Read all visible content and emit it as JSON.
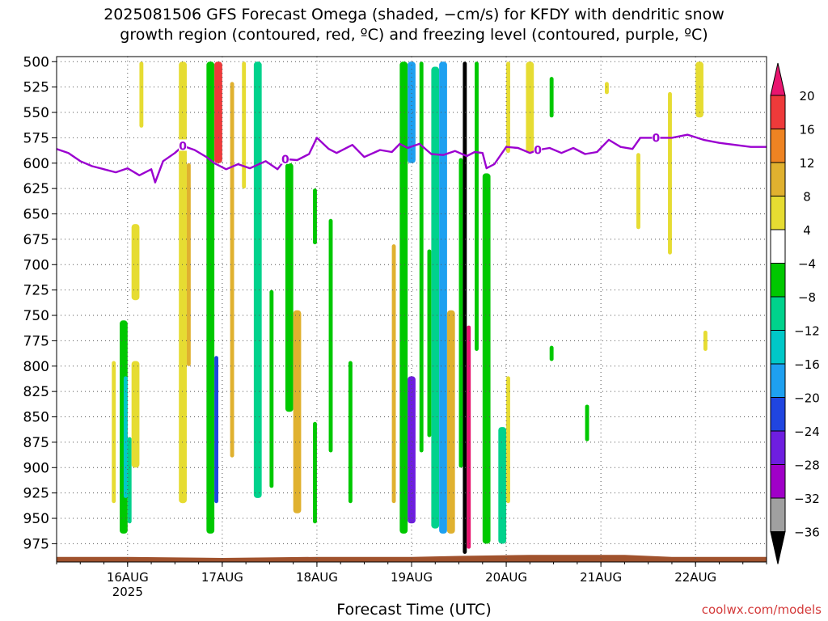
{
  "title_lines": [
    "2025081506 GFS Forecast Omega (shaded, −cm/s) for KFDY with dendritic snow",
    "growth region (contoured, red, ºC) and freezing level (contoured, purple, ºC)"
  ],
  "xlabel": "Forecast Time (UTC)",
  "credit": "coolwx.com/models",
  "chart_data": {
    "type": "heatmap",
    "x_time_range": [
      "2025-08-15T06",
      "2025-08-22T18"
    ],
    "x_ticks": [
      {
        "t": "2025-08-16T00",
        "label": "16AUG",
        "sublabel": "2025"
      },
      {
        "t": "2025-08-17T00",
        "label": "17AUG"
      },
      {
        "t": "2025-08-18T00",
        "label": "18AUG"
      },
      {
        "t": "2025-08-19T00",
        "label": "19AUG"
      },
      {
        "t": "2025-08-20T00",
        "label": "20AUG"
      },
      {
        "t": "2025-08-21T00",
        "label": "21AUG"
      },
      {
        "t": "2025-08-22T00",
        "label": "22AUG"
      }
    ],
    "y_pressure_range": [
      495,
      993
    ],
    "y_ticks": [
      500,
      525,
      550,
      575,
      600,
      625,
      650,
      675,
      700,
      725,
      750,
      775,
      800,
      825,
      850,
      875,
      900,
      925,
      950,
      975
    ],
    "grid": true,
    "colorbar": {
      "ticks": [
        20,
        16,
        12,
        8,
        4,
        -4,
        -8,
        -12,
        -16,
        -20,
        -24,
        -28,
        -32,
        -36
      ],
      "bins": [
        {
          "lo": 20,
          "hi": 24,
          "color": "#e8156f"
        },
        {
          "lo": 16,
          "hi": 20,
          "color": "#ee3a3a"
        },
        {
          "lo": 12,
          "hi": 16,
          "color": "#ee8322"
        },
        {
          "lo": 8,
          "hi": 12,
          "color": "#e0b12f"
        },
        {
          "lo": 4,
          "hi": 8,
          "color": "#e6dc32"
        },
        {
          "lo": -4,
          "hi": 4,
          "color": "#ffffff"
        },
        {
          "lo": -8,
          "hi": -4,
          "color": "#00c800"
        },
        {
          "lo": -12,
          "hi": -8,
          "color": "#00d28c"
        },
        {
          "lo": -16,
          "hi": -12,
          "color": "#00c8c8"
        },
        {
          "lo": -20,
          "hi": -16,
          "color": "#1ea0f0"
        },
        {
          "lo": -24,
          "hi": -20,
          "color": "#2045e0"
        },
        {
          "lo": -28,
          "hi": -24,
          "color": "#6e1ee0"
        },
        {
          "lo": -32,
          "hi": -28,
          "color": "#a000c8"
        },
        {
          "lo": -36,
          "hi": -32,
          "color": "#a0a0a0"
        },
        {
          "lo": -40,
          "hi": -36,
          "color": "#000000"
        }
      ]
    },
    "freezing_level": {
      "color": "#9b00d0",
      "label": "0",
      "label_times": [
        "2025-08-16T14",
        "2025-08-17T16",
        "2025-08-20T08",
        "2025-08-21T14"
      ],
      "points": [
        [
          "2025-08-15T06",
          586
        ],
        [
          "2025-08-15T09",
          590
        ],
        [
          "2025-08-15T12",
          598
        ],
        [
          "2025-08-15T15",
          603
        ],
        [
          "2025-08-15T18",
          606
        ],
        [
          "2025-08-15T21",
          609
        ],
        [
          "2025-08-16T00",
          605
        ],
        [
          "2025-08-16T03",
          612
        ],
        [
          "2025-08-16T06",
          606
        ],
        [
          "2025-08-16T07",
          619
        ],
        [
          "2025-08-16T09",
          598
        ],
        [
          "2025-08-16T12",
          590
        ],
        [
          "2025-08-16T14",
          583
        ],
        [
          "2025-08-16T17",
          587
        ],
        [
          "2025-08-16T20",
          594
        ],
        [
          "2025-08-16T22",
          600
        ],
        [
          "2025-08-17T01",
          606
        ],
        [
          "2025-08-17T04",
          601
        ],
        [
          "2025-08-17T07",
          605
        ],
        [
          "2025-08-17T11",
          598
        ],
        [
          "2025-08-17T14",
          606
        ],
        [
          "2025-08-17T16",
          596
        ],
        [
          "2025-08-17T19",
          597
        ],
        [
          "2025-08-17T22",
          591
        ],
        [
          "2025-08-18T00",
          575
        ],
        [
          "2025-08-18T03",
          586
        ],
        [
          "2025-08-18T05",
          590
        ],
        [
          "2025-08-18T09",
          582
        ],
        [
          "2025-08-18T12",
          594
        ],
        [
          "2025-08-18T16",
          587
        ],
        [
          "2025-08-18T19",
          589
        ],
        [
          "2025-08-18T21",
          581
        ],
        [
          "2025-08-18T23",
          585
        ],
        [
          "2025-08-19T02",
          581
        ],
        [
          "2025-08-19T05",
          591
        ],
        [
          "2025-08-19T08",
          592
        ],
        [
          "2025-08-19T11",
          588
        ],
        [
          "2025-08-19T14",
          593
        ],
        [
          "2025-08-19T16",
          589
        ],
        [
          "2025-08-19T18",
          590
        ],
        [
          "2025-08-19T19",
          605
        ],
        [
          "2025-08-19T21",
          601
        ],
        [
          "2025-08-20T00",
          584
        ],
        [
          "2025-08-20T03",
          585
        ],
        [
          "2025-08-20T06",
          590
        ],
        [
          "2025-08-20T08",
          587
        ],
        [
          "2025-08-20T11",
          585
        ],
        [
          "2025-08-20T14",
          590
        ],
        [
          "2025-08-20T17",
          585
        ],
        [
          "2025-08-20T20",
          591
        ],
        [
          "2025-08-20T23",
          589
        ],
        [
          "2025-08-21T02",
          577
        ],
        [
          "2025-08-21T05",
          584
        ],
        [
          "2025-08-21T08",
          586
        ],
        [
          "2025-08-21T10",
          575
        ],
        [
          "2025-08-21T14",
          575
        ],
        [
          "2025-08-21T18",
          575
        ],
        [
          "2025-08-21T22",
          572
        ],
        [
          "2025-08-22T02",
          577
        ],
        [
          "2025-08-22T06",
          580
        ],
        [
          "2025-08-22T10",
          582
        ],
        [
          "2025-08-22T14",
          584
        ],
        [
          "2025-08-22T18",
          584
        ]
      ]
    },
    "surface": {
      "color": "#a0522d",
      "points": [
        [
          "2025-08-15T06",
          988
        ],
        [
          "2025-08-16T00",
          988
        ],
        [
          "2025-08-17T00",
          989
        ],
        [
          "2025-08-18T00",
          988
        ],
        [
          "2025-08-19T00",
          988
        ],
        [
          "2025-08-19T12",
          987
        ],
        [
          "2025-08-20T06",
          986
        ],
        [
          "2025-08-21T06",
          986
        ],
        [
          "2025-08-21T18",
          988
        ],
        [
          "2025-08-22T18",
          988
        ]
      ]
    },
    "omega_bands": [
      {
        "t0": "2025-08-15T20",
        "t1": "2025-08-15T21",
        "p0": 795,
        "p1": 935,
        "value": 5
      },
      {
        "t0": "2025-08-15T22",
        "t1": "2025-08-16T00",
        "p0": 755,
        "p1": 965,
        "value": -6
      },
      {
        "t0": "2025-08-15T23",
        "t1": "2025-08-16T00",
        "p0": 810,
        "p1": 930,
        "value": -14
      },
      {
        "t0": "2025-08-16T00",
        "t1": "2025-08-16T01",
        "p0": 870,
        "p1": 955,
        "value": -9
      },
      {
        "t0": "2025-08-16T01",
        "t1": "2025-08-16T03",
        "p0": 660,
        "p1": 735,
        "value": 5
      },
      {
        "t0": "2025-08-16T01",
        "t1": "2025-08-16T03",
        "p0": 795,
        "p1": 900,
        "value": 5
      },
      {
        "t0": "2025-08-16T03",
        "t1": "2025-08-16T04",
        "p0": 500,
        "p1": 565,
        "value": 5
      },
      {
        "t0": "2025-08-16T13",
        "t1": "2025-08-16T15",
        "p0": 500,
        "p1": 935,
        "value": 6
      },
      {
        "t0": "2025-08-16T15",
        "t1": "2025-08-16T16",
        "p0": 600,
        "p1": 800,
        "value": 10
      },
      {
        "t0": "2025-08-16T20",
        "t1": "2025-08-16T22",
        "p0": 500,
        "p1": 965,
        "value": -6
      },
      {
        "t0": "2025-08-16T22",
        "t1": "2025-08-17T00",
        "p0": 500,
        "p1": 600,
        "value": 17
      },
      {
        "t0": "2025-08-16T22",
        "t1": "2025-08-16T23",
        "p0": 790,
        "p1": 935,
        "value": -22
      },
      {
        "t0": "2025-08-17T02",
        "t1": "2025-08-17T03",
        "p0": 520,
        "p1": 890,
        "value": 10
      },
      {
        "t0": "2025-08-17T05",
        "t1": "2025-08-17T06",
        "p0": 500,
        "p1": 625,
        "value": 5
      },
      {
        "t0": "2025-08-17T08",
        "t1": "2025-08-17T10",
        "p0": 500,
        "p1": 930,
        "value": -10
      },
      {
        "t0": "2025-08-17T12",
        "t1": "2025-08-17T13",
        "p0": 725,
        "p1": 920,
        "value": -6
      },
      {
        "t0": "2025-08-17T16",
        "t1": "2025-08-17T18",
        "p0": 600,
        "p1": 845,
        "value": -8
      },
      {
        "t0": "2025-08-17T18",
        "t1": "2025-08-17T20",
        "p0": 745,
        "p1": 945,
        "value": 10
      },
      {
        "t0": "2025-08-17T23",
        "t1": "2025-08-18T00",
        "p0": 625,
        "p1": 680,
        "value": -6
      },
      {
        "t0": "2025-08-17T23",
        "t1": "2025-08-18T00",
        "p0": 855,
        "p1": 955,
        "value": -6
      },
      {
        "t0": "2025-08-18T03",
        "t1": "2025-08-18T04",
        "p0": 655,
        "p1": 885,
        "value": -6
      },
      {
        "t0": "2025-08-18T08",
        "t1": "2025-08-18T09",
        "p0": 795,
        "p1": 935,
        "value": -6
      },
      {
        "t0": "2025-08-18T19",
        "t1": "2025-08-18T20",
        "p0": 680,
        "p1": 935,
        "value": 10
      },
      {
        "t0": "2025-08-18T21",
        "t1": "2025-08-18T23",
        "p0": 500,
        "p1": 965,
        "value": -6
      },
      {
        "t0": "2025-08-18T23",
        "t1": "2025-08-19T01",
        "p0": 500,
        "p1": 600,
        "value": -18
      },
      {
        "t0": "2025-08-18T23",
        "t1": "2025-08-19T01",
        "p0": 810,
        "p1": 955,
        "value": -26
      },
      {
        "t0": "2025-08-19T02",
        "t1": "2025-08-19T03",
        "p0": 500,
        "p1": 885,
        "value": -6
      },
      {
        "t0": "2025-08-19T04",
        "t1": "2025-08-19T05",
        "p0": 685,
        "p1": 870,
        "value": -6
      },
      {
        "t0": "2025-08-19T05",
        "t1": "2025-08-19T07",
        "p0": 505,
        "p1": 960,
        "value": -10
      },
      {
        "t0": "2025-08-19T07",
        "t1": "2025-08-19T09",
        "p0": 500,
        "p1": 965,
        "value": -18
      },
      {
        "t0": "2025-08-19T09",
        "t1": "2025-08-19T11",
        "p0": 745,
        "p1": 965,
        "value": 10
      },
      {
        "t0": "2025-08-19T12",
        "t1": "2025-08-19T13",
        "p0": 595,
        "p1": 900,
        "value": -6
      },
      {
        "t0": "2025-08-19T13",
        "t1": "2025-08-19T14",
        "p0": 500,
        "p1": 985,
        "value": -40
      },
      {
        "t0": "2025-08-19T14",
        "t1": "2025-08-19T15",
        "p0": 760,
        "p1": 980,
        "value": 22
      },
      {
        "t0": "2025-08-19T16",
        "t1": "2025-08-19T17",
        "p0": 500,
        "p1": 785,
        "value": -6
      },
      {
        "t0": "2025-08-19T18",
        "t1": "2025-08-19T20",
        "p0": 610,
        "p1": 975,
        "value": -6
      },
      {
        "t0": "2025-08-19T22",
        "t1": "2025-08-20T00",
        "p0": 860,
        "p1": 975,
        "value": -12
      },
      {
        "t0": "2025-08-20T00",
        "t1": "2025-08-20T01",
        "p0": 500,
        "p1": 590,
        "value": 5
      },
      {
        "t0": "2025-08-20T00",
        "t1": "2025-08-20T01",
        "p0": 810,
        "p1": 935,
        "value": 5
      },
      {
        "t0": "2025-08-20T05",
        "t1": "2025-08-20T07",
        "p0": 500,
        "p1": 590,
        "value": 5
      },
      {
        "t0": "2025-08-20T11",
        "t1": "2025-08-20T12",
        "p0": 515,
        "p1": 555,
        "value": -6
      },
      {
        "t0": "2025-08-20T11",
        "t1": "2025-08-20T12",
        "p0": 780,
        "p1": 795,
        "value": -6
      },
      {
        "t0": "2025-08-20T20",
        "t1": "2025-08-20T21",
        "p0": 838,
        "p1": 874,
        "value": -6
      },
      {
        "t0": "2025-08-21T01",
        "t1": "2025-08-21T02",
        "p0": 520,
        "p1": 532,
        "value": 5
      },
      {
        "t0": "2025-08-21T09",
        "t1": "2025-08-21T10",
        "p0": 590,
        "p1": 665,
        "value": 5
      },
      {
        "t0": "2025-08-21T17",
        "t1": "2025-08-21T18",
        "p0": 530,
        "p1": 690,
        "value": 5
      },
      {
        "t0": "2025-08-22T00",
        "t1": "2025-08-22T02",
        "p0": 500,
        "p1": 555,
        "value": 5
      },
      {
        "t0": "2025-08-22T02",
        "t1": "2025-08-22T03",
        "p0": 765,
        "p1": 785,
        "value": 5
      }
    ]
  }
}
